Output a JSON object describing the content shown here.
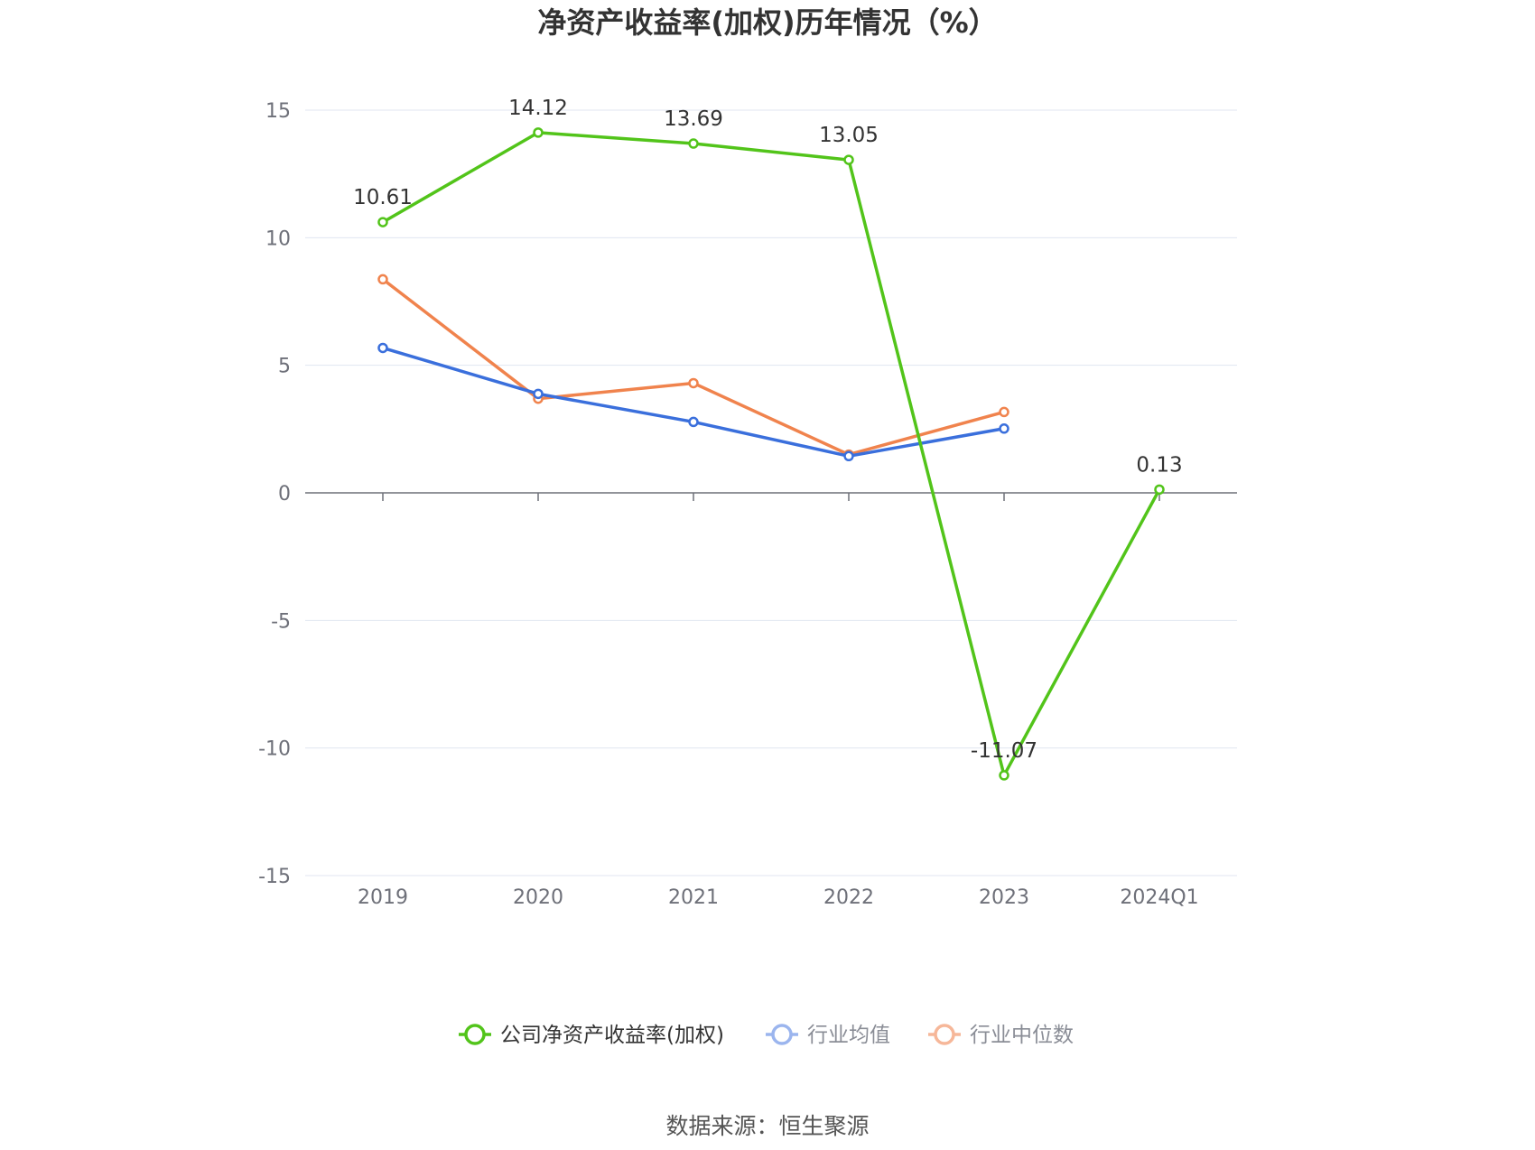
{
  "chart_data": {
    "type": "line",
    "title": "净资产收益率(加权)历年情况（%）",
    "categories": [
      "2019",
      "2020",
      "2021",
      "2022",
      "2023",
      "2024Q1"
    ],
    "ylim": [
      -15,
      15
    ],
    "yticks": [
      15,
      10,
      5,
      0,
      -5,
      -10,
      -15
    ],
    "grid": true,
    "legend_position": "bottom",
    "series": [
      {
        "name": "公司净资产收益率(加权)",
        "color": "#52c41a",
        "values": [
          10.61,
          14.12,
          13.69,
          13.05,
          -11.07,
          0.13
        ],
        "labels": [
          "10.61",
          "14.12",
          "13.69",
          "13.05",
          "-11.07",
          "0.13"
        ]
      },
      {
        "name": "行业均值",
        "color": "#3a6fdc",
        "legend_color": "#9bb5ee",
        "values": [
          5.68,
          3.88,
          2.78,
          1.44,
          2.52,
          null
        ]
      },
      {
        "name": "行业中位数",
        "color": "#f0834d",
        "legend_color": "#f6b799",
        "values": [
          8.37,
          3.69,
          4.3,
          1.5,
          3.17,
          null
        ]
      }
    ]
  },
  "source": "数据来源：恒生聚源"
}
